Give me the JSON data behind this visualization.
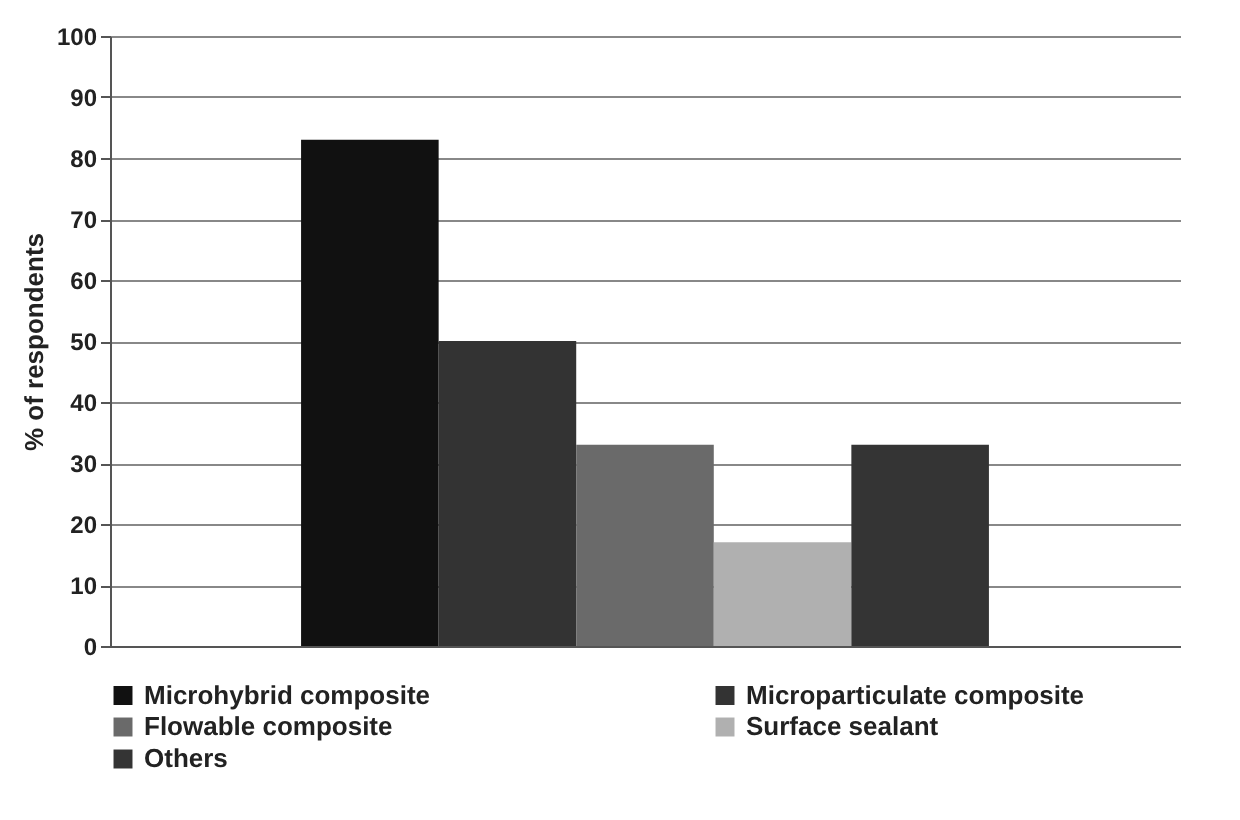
{
  "chart_data": {
    "type": "bar",
    "ylabel": "% of respondents",
    "categories": [
      null
    ],
    "series": [
      {
        "name": "Microhybrid composite",
        "color": "#111111",
        "values": [
          83
        ]
      },
      {
        "name": "Microparticulate composite",
        "color": "#333333",
        "values": [
          50
        ]
      },
      {
        "name": "Flowable composite",
        "color": "#6a6a6a",
        "values": [
          33
        ]
      },
      {
        "name": "Surface sealant",
        "color": "#b0b0b0",
        "values": [
          17
        ]
      },
      {
        "name": "Others",
        "color": "#343434",
        "values": [
          33
        ]
      }
    ],
    "ylim": [
      0,
      100
    ],
    "yticks": [
      0,
      10,
      20,
      30,
      40,
      50,
      60,
      70,
      80,
      90,
      100
    ],
    "grid": "y",
    "legend": "bottom"
  }
}
